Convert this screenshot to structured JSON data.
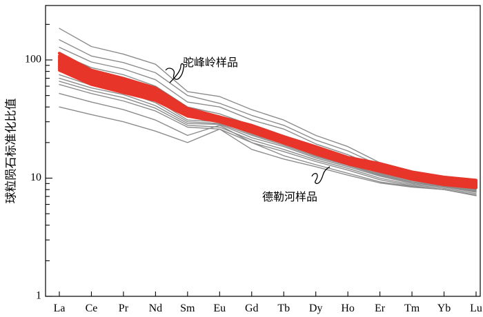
{
  "chart_data": {
    "type": "line",
    "ylabel": "球粒陨石标准化比值",
    "xlabel": "",
    "categories": [
      "La",
      "Ce",
      "Pr",
      "Nd",
      "Sm",
      "Eu",
      "Gd",
      "Tb",
      "Dy",
      "Ho",
      "Er",
      "Tm",
      "Yb",
      "Lu"
    ],
    "y_scale": "log",
    "ylim": [
      1,
      300
    ],
    "yticks": [
      1,
      10,
      100
    ],
    "ytick_labels": [
      "1",
      "10",
      "100"
    ],
    "grid": false,
    "annotations": [
      {
        "label": "驼峰岭样品",
        "target_series": "gray"
      },
      {
        "label": "德勒河样品",
        "target_series": "red"
      }
    ],
    "series_groups": [
      {
        "color": "#8c8c8c",
        "series": [
          {
            "values": [
              185,
              130,
              112,
              92,
              54,
              49,
              38,
              31,
              23,
              18.5,
              13.5,
              11.0,
              9.8,
              9.0
            ]
          },
          {
            "values": [
              148,
              108,
              95,
              78,
              50,
              43,
              34,
              28,
              21,
              17,
              12.8,
              10.6,
              9.4,
              8.7
            ]
          },
          {
            "values": [
              128,
              96,
              84,
              68,
              44,
              40,
              31,
              26,
              19.5,
              15.8,
              12.3,
              10.3,
              9.2,
              8.5
            ]
          },
          {
            "values": [
              112,
              86,
              75,
              60,
              40,
              35,
              28,
              23,
              18,
              14.5,
              11.8,
              10.0,
              9.0,
              8.2
            ]
          },
          {
            "values": [
              102,
              80,
              70,
              55,
              37,
              33,
              26,
              21.5,
              17,
              14,
              11.5,
              9.8,
              8.9,
              8.1
            ]
          },
          {
            "values": [
              95,
              75,
              65,
              52,
              35,
              32,
              25,
              21,
              16.5,
              13.8,
              11.2,
              9.6,
              8.8,
              8.0
            ]
          },
          {
            "values": [
              88,
              70,
              61,
              49,
              33,
              31,
              24,
              20,
              16,
              13.4,
              11.0,
              9.5,
              8.7,
              7.9
            ]
          },
          {
            "values": [
              80,
              65,
              57,
              46,
              31,
              30,
              23.5,
              19.5,
              15.5,
              13.0,
              10.8,
              9.3,
              8.6,
              7.8
            ]
          },
          {
            "values": [
              75,
              61,
              54,
              43.5,
              30,
              29,
              23,
              19,
              15.2,
              12.8,
              10.6,
              9.2,
              8.5,
              7.7
            ]
          },
          {
            "values": [
              70,
              58,
              51,
              41,
              29,
              28.5,
              22,
              18.5,
              14.8,
              12.5,
              10.4,
              9.0,
              8.4,
              7.6
            ]
          },
          {
            "values": [
              66,
              55,
              48,
              39,
              28,
              27,
              21,
              17.5,
              14.3,
              12.1,
              10.0,
              8.8,
              8.2,
              7.4
            ]
          },
          {
            "values": [
              62,
              52,
              45,
              37,
              27,
              26,
              20,
              16.8,
              13.8,
              11.7,
              9.7,
              8.6,
              8.0,
              7.2
            ]
          },
          {
            "values": [
              52,
              44,
              38,
              31,
              23,
              28,
              20,
              15.5,
              13.0,
              11.0,
              9.3,
              8.5,
              8.0,
              7.2
            ]
          },
          {
            "values": [
              40,
              34.5,
              30,
              25,
              20,
              26,
              17.5,
              14.5,
              12.5,
              10.6,
              9.1,
              8.4,
              8.0,
              7.1
            ]
          }
        ]
      },
      {
        "color": "#e8352a",
        "series": [
          {
            "values": [
              114,
              82,
              70,
              58,
              39,
              33,
              28,
              22.5,
              18.5,
              15.0,
              13.3,
              11.3,
              10.2,
              9.6
            ]
          },
          {
            "values": [
              108,
              79,
              67,
              56,
              38,
              33,
              27.5,
              22,
              18,
              14.8,
              13.0,
              11.1,
              10.0,
              9.4
            ]
          },
          {
            "values": [
              104,
              76,
              65,
              54,
              37,
              32.5,
              27,
              21.5,
              17.8,
              14.5,
              12.8,
              10.9,
              9.8,
              9.2
            ]
          },
          {
            "values": [
              100,
              74,
              63,
              53,
              36.5,
              32,
              26.5,
              21.2,
              17.5,
              14.3,
              12.6,
              10.7,
              9.6,
              9.0
            ]
          },
          {
            "values": [
              97,
              72,
              61,
              51,
              36,
              31.5,
              26,
              21,
              17.2,
              14.1,
              12.4,
              10.5,
              9.5,
              8.9
            ]
          },
          {
            "values": [
              94,
              70,
              60,
              50,
              35.5,
              31,
              25.8,
              20.7,
              17.0,
              14.0,
              12.2,
              10.4,
              9.3,
              8.8
            ]
          },
          {
            "values": [
              91,
              68,
              58,
              49,
              35,
              31,
              25.5,
              20.5,
              16.8,
              13.8,
              12.0,
              10.2,
              9.2,
              8.6
            ]
          },
          {
            "values": [
              88,
              66,
              56,
              48,
              34.5,
              30.5,
              25,
              20.2,
              16.5,
              13.6,
              11.8,
              10.0,
              9.0,
              8.5
            ]
          },
          {
            "values": [
              85,
              64,
              55,
              47,
              34,
              30.5,
              24.8,
              20,
              16.3,
              13.4,
              11.6,
              9.9,
              8.9,
              8.4
            ]
          },
          {
            "values": [
              82,
              62,
              53,
              45.5,
              33.5,
              30,
              24.5,
              19.8,
              16.0,
              13.2,
              11.4,
              9.8,
              8.8,
              8.3
            ]
          }
        ]
      }
    ]
  }
}
